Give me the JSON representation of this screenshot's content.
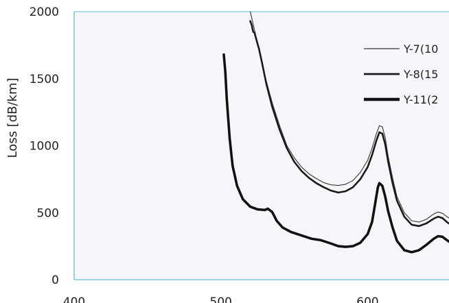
{
  "chart_data": {
    "type": "line",
    "title": "",
    "xlabel": "",
    "ylabel": "Loss [dB/km]",
    "xlim": [
      400,
      662
    ],
    "ylim": [
      0,
      2000
    ],
    "x_ticks": [
      "400",
      "500",
      "600"
    ],
    "y_ticks": [
      "0",
      "500",
      "1000",
      "1500",
      "2000"
    ],
    "grid": false,
    "legend_position": "top-right",
    "plot_background": "#f4f6f9",
    "axis_color": "#7fc8dc",
    "series": [
      {
        "name": "Y-7(10",
        "color": "#333333",
        "line_weight": "thin",
        "points": [
          [
            520,
            2000
          ],
          [
            523,
            1860
          ],
          [
            525,
            1760
          ],
          [
            528,
            1620
          ],
          [
            531,
            1480
          ],
          [
            535,
            1320
          ],
          [
            540,
            1150
          ],
          [
            545,
            1000
          ],
          [
            550,
            910
          ],
          [
            555,
            840
          ],
          [
            560,
            790
          ],
          [
            565,
            755
          ],
          [
            570,
            725
          ],
          [
            575,
            708
          ],
          [
            580,
            703
          ],
          [
            585,
            712
          ],
          [
            590,
            740
          ],
          [
            595,
            800
          ],
          [
            600,
            890
          ],
          [
            603,
            980
          ],
          [
            606,
            1090
          ],
          [
            608,
            1150
          ],
          [
            610,
            1140
          ],
          [
            612,
            1060
          ],
          [
            614,
            920
          ],
          [
            617,
            760
          ],
          [
            620,
            620
          ],
          [
            625,
            500
          ],
          [
            630,
            440
          ],
          [
            635,
            430
          ],
          [
            640,
            450
          ],
          [
            645,
            490
          ],
          [
            648,
            505
          ],
          [
            651,
            495
          ],
          [
            654,
            470
          ],
          [
            658,
            440
          ],
          [
            662,
            410
          ]
        ]
      },
      {
        "name": "Y-8(15",
        "color": "#1a1a1a",
        "line_weight": "medium",
        "points": [
          [
            520,
            1930
          ],
          [
            521,
            1900
          ],
          [
            522,
            1850
          ],
          [
            523,
            1840
          ],
          [
            524,
            1800
          ],
          [
            526,
            1720
          ],
          [
            528,
            1620
          ],
          [
            531,
            1460
          ],
          [
            535,
            1290
          ],
          [
            540,
            1120
          ],
          [
            545,
            980
          ],
          [
            550,
            880
          ],
          [
            555,
            810
          ],
          [
            560,
            760
          ],
          [
            565,
            720
          ],
          [
            570,
            690
          ],
          [
            575,
            665
          ],
          [
            580,
            650
          ],
          [
            585,
            660
          ],
          [
            590,
            690
          ],
          [
            595,
            750
          ],
          [
            600,
            840
          ],
          [
            603,
            930
          ],
          [
            606,
            1040
          ],
          [
            608,
            1100
          ],
          [
            610,
            1090
          ],
          [
            612,
            1010
          ],
          [
            614,
            880
          ],
          [
            617,
            720
          ],
          [
            620,
            590
          ],
          [
            625,
            470
          ],
          [
            630,
            410
          ],
          [
            635,
            400
          ],
          [
            640,
            420
          ],
          [
            645,
            455
          ],
          [
            648,
            470
          ],
          [
            651,
            460
          ],
          [
            654,
            430
          ],
          [
            658,
            400
          ],
          [
            662,
            370
          ]
        ]
      },
      {
        "name": "Y-11(2",
        "color": "#111111",
        "line_weight": "thick",
        "points": [
          [
            502,
            1680
          ],
          [
            503,
            1550
          ],
          [
            504,
            1350
          ],
          [
            506,
            1050
          ],
          [
            508,
            850
          ],
          [
            511,
            700
          ],
          [
            515,
            600
          ],
          [
            520,
            545
          ],
          [
            525,
            525
          ],
          [
            530,
            520
          ],
          [
            532,
            530
          ],
          [
            535,
            505
          ],
          [
            538,
            440
          ],
          [
            542,
            390
          ],
          [
            548,
            355
          ],
          [
            555,
            330
          ],
          [
            562,
            305
          ],
          [
            568,
            295
          ],
          [
            575,
            270
          ],
          [
            580,
            250
          ],
          [
            585,
            245
          ],
          [
            590,
            250
          ],
          [
            595,
            275
          ],
          [
            600,
            340
          ],
          [
            603,
            430
          ],
          [
            605,
            560
          ],
          [
            607,
            690
          ],
          [
            608,
            720
          ],
          [
            610,
            700
          ],
          [
            612,
            620
          ],
          [
            614,
            510
          ],
          [
            617,
            390
          ],
          [
            620,
            290
          ],
          [
            625,
            220
          ],
          [
            630,
            205
          ],
          [
            635,
            220
          ],
          [
            640,
            260
          ],
          [
            645,
            305
          ],
          [
            648,
            325
          ],
          [
            651,
            320
          ],
          [
            654,
            295
          ],
          [
            658,
            265
          ],
          [
            662,
            235
          ]
        ]
      }
    ]
  }
}
